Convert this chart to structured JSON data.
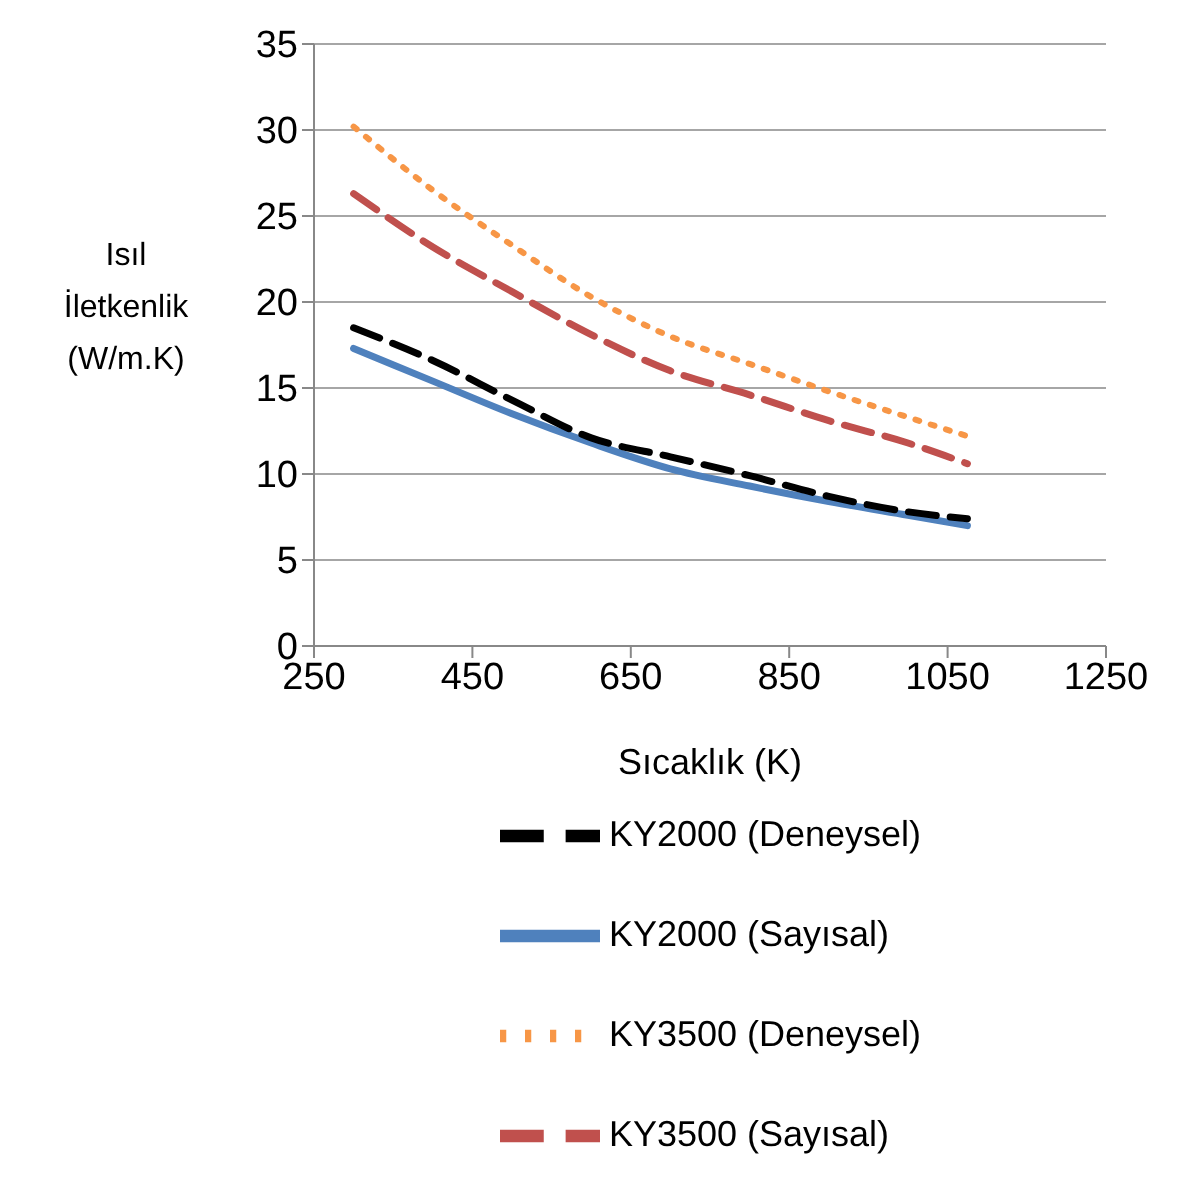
{
  "chart_data": {
    "type": "line",
    "xlabel": "Sıcaklık (K)",
    "ylabel": "Isıl İletkenlik (W/m.K)",
    "x": [
      300,
      400,
      500,
      600,
      700,
      800,
      900,
      1000,
      1075
    ],
    "series": [
      {
        "name": "KY2000 (Sayısal)",
        "color": "#4f81bd",
        "line_style": "solid",
        "values": [
          17.3,
          15.4,
          13.5,
          11.8,
          10.3,
          9.3,
          8.4,
          7.6,
          7.0
        ]
      },
      {
        "name": "KY3500 (Sayısal)",
        "color": "#c0504d",
        "line_style": "dashed",
        "values": [
          26.3,
          23.2,
          20.6,
          18.1,
          16.0,
          14.6,
          13.1,
          11.8,
          10.6
        ]
      },
      {
        "name": "KY2000 (Deneysel)",
        "color": "#000000",
        "line_style": "dashed",
        "values": [
          18.5,
          16.6,
          14.3,
          12.1,
          11.0,
          9.9,
          8.7,
          7.8,
          7.4
        ]
      },
      {
        "name": "KY3500 (Deneysel)",
        "color": "#f79646",
        "line_style": "dotted",
        "values": [
          30.2,
          26.5,
          23.3,
          20.3,
          18.0,
          16.4,
          14.8,
          13.3,
          12.2
        ]
      }
    ],
    "xlim": [
      250,
      1250
    ],
    "xticks": [
      250,
      450,
      650,
      850,
      1050,
      1250
    ],
    "ylim": [
      0,
      35
    ],
    "yticks": [
      0,
      5,
      10,
      15,
      20,
      25,
      30,
      35
    ],
    "grid": "y",
    "legend": "bottom",
    "marker": "none"
  }
}
